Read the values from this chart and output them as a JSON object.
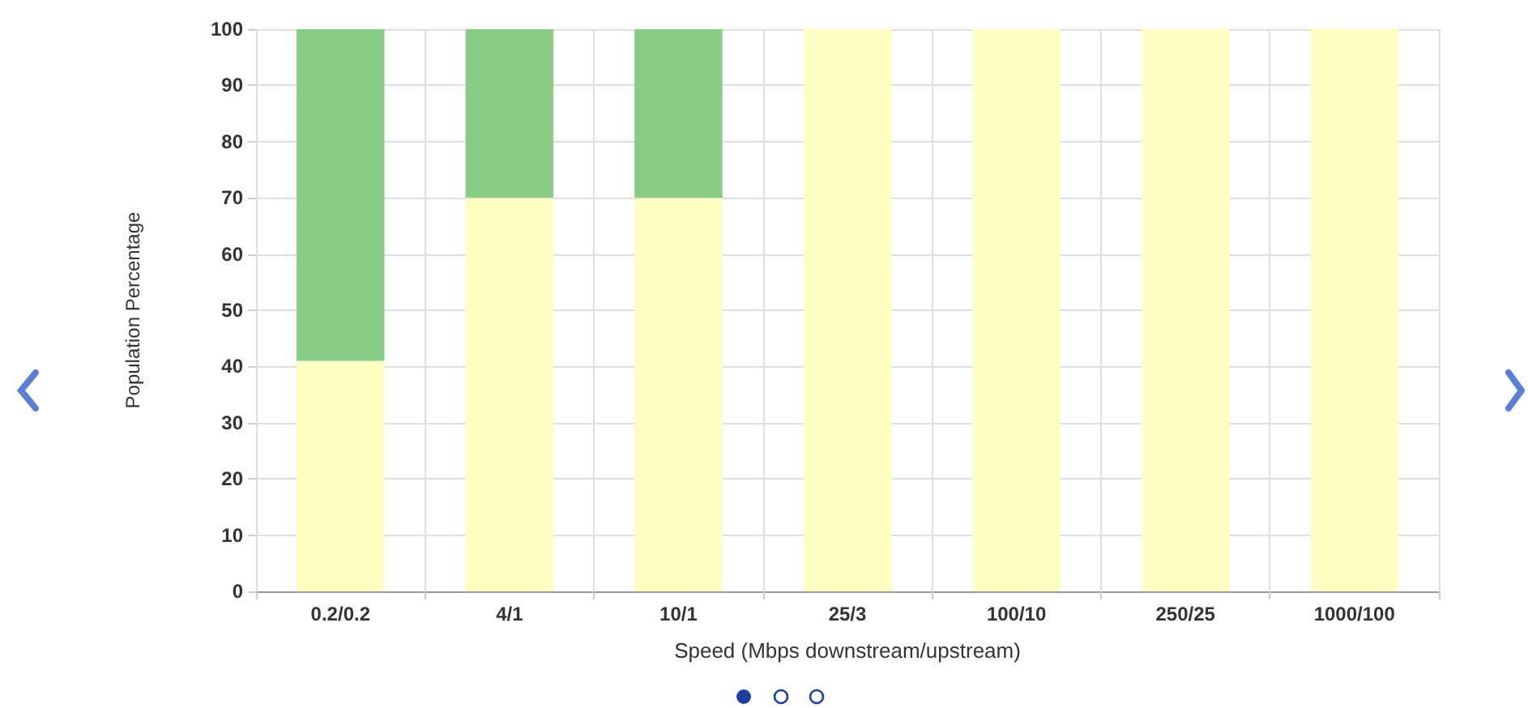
{
  "chart_data": {
    "type": "bar",
    "stacked": true,
    "categories": [
      "0.2/0.2",
      "4/1",
      "10/1",
      "25/3",
      "100/10",
      "250/25",
      "1000/100"
    ],
    "series": [
      {
        "color": "#ffffc4",
        "values": [
          41,
          70,
          70,
          100,
          100,
          100,
          100
        ]
      },
      {
        "color": "#88cc88",
        "values": [
          59,
          30,
          30,
          0,
          0,
          0,
          0
        ]
      }
    ],
    "xlabel": "Speed (Mbps downstream/upstream)",
    "ylabel": "Population Percentage",
    "ylim": [
      0,
      100
    ],
    "yticks": [
      0,
      10,
      20,
      30,
      40,
      50,
      60,
      70,
      80,
      90,
      100
    ],
    "grid": true
  }
}
